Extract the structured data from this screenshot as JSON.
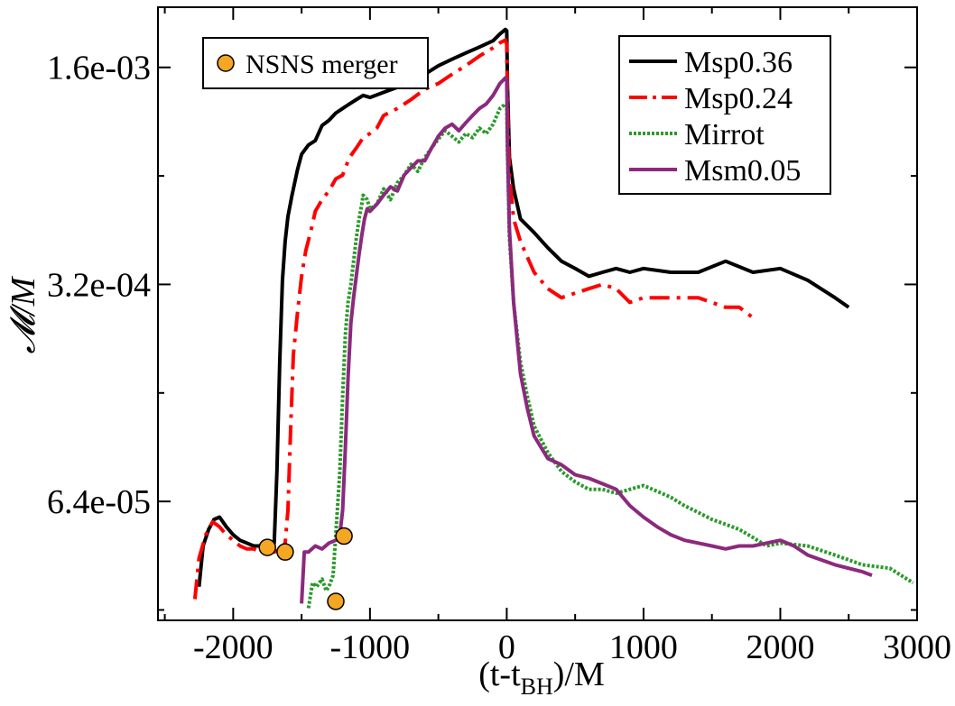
{
  "chart_data": {
    "type": "line",
    "title": "",
    "xlabel": "(t-t",
    "xlabel_sub": "BH",
    "xlabel_tail": ")/M",
    "ylabel": "𝓜/M",
    "xlim": [
      -2550,
      3000
    ],
    "ylog": true,
    "ylim": [
      2.65e-05,
      0.0025
    ],
    "x_ticks": [
      -2000,
      -1000,
      0,
      1000,
      2000,
      3000
    ],
    "x_tick_labels": [
      "-2000",
      "-1000",
      "0",
      "1000",
      "2000",
      "3000"
    ],
    "y_ticks": [
      0.0016,
      0.00032,
      6.4e-05
    ],
    "y_tick_labels": [
      "1.6e-03",
      "3.2e-04",
      "6.4e-05"
    ],
    "grid": false,
    "legend_position": "top-right",
    "series": [
      {
        "name": "Msp0.36",
        "color": "#000000",
        "dash": "solid",
        "x": [
          -2250,
          -2220,
          -2180,
          -2140,
          -2100,
          -2050,
          -2000,
          -1950,
          -1900,
          -1850,
          -1800,
          -1750,
          -1700,
          -1680,
          -1660,
          -1640,
          -1620,
          -1600,
          -1570,
          -1530,
          -1500,
          -1450,
          -1400,
          -1350,
          -1300,
          -1250,
          -1200,
          -1150,
          -1100,
          -1050,
          -1000,
          -900,
          -800,
          -700,
          -600,
          -500,
          -400,
          -300,
          -200,
          -100,
          -50,
          -10,
          0,
          5,
          20,
          50,
          100,
          200,
          300,
          400,
          500,
          600,
          700,
          800,
          900,
          1000,
          1200,
          1400,
          1600,
          1800,
          2000,
          2200,
          2400,
          2500
        ],
        "y": [
          3.4e-05,
          4.6e-05,
          5.2e-05,
          5.6e-05,
          5.7e-05,
          5.3e-05,
          5e-05,
          4.8e-05,
          4.7e-05,
          4.6e-05,
          4.6e-05,
          4.5e-05,
          4.7e-05,
          8e-05,
          0.00018,
          0.00033,
          0.00044,
          0.00053,
          0.00062,
          0.00075,
          0.00084,
          0.0009,
          0.00093,
          0.00104,
          0.00108,
          0.00114,
          0.00118,
          0.00122,
          0.00126,
          0.0013,
          0.00128,
          0.00133,
          0.00138,
          0.00145,
          0.00152,
          0.00162,
          0.0017,
          0.00178,
          0.00186,
          0.00195,
          0.00205,
          0.00212,
          0.0021,
          0.0014,
          0.00082,
          0.00065,
          0.00052,
          0.00047,
          0.00042,
          0.00038,
          0.00036,
          0.00034,
          0.00035,
          0.00036,
          0.00035,
          0.00036,
          0.00035,
          0.00035,
          0.00038,
          0.00035,
          0.00036,
          0.00033,
          0.00029,
          0.00027
        ]
      },
      {
        "name": "Msp0.24",
        "color": "#ff0000",
        "dash": "dashdot",
        "x": [
          -2280,
          -2250,
          -2200,
          -2150,
          -2100,
          -2050,
          -2000,
          -1950,
          -1900,
          -1850,
          -1800,
          -1750,
          -1700,
          -1650,
          -1620,
          -1600,
          -1580,
          -1560,
          -1530,
          -1500,
          -1470,
          -1430,
          -1400,
          -1350,
          -1300,
          -1250,
          -1200,
          -1150,
          -1100,
          -1050,
          -1000,
          -950,
          -900,
          -800,
          -700,
          -600,
          -500,
          -400,
          -300,
          -200,
          -100,
          -50,
          -10,
          0,
          5,
          20,
          50,
          100,
          200,
          300,
          400,
          500,
          600,
          700,
          800,
          900,
          1000,
          1200,
          1400,
          1600,
          1700,
          1800
        ],
        "y": [
          3.1e-05,
          4.2e-05,
          5e-05,
          5.5e-05,
          5.3e-05,
          5e-05,
          4.8e-05,
          4.6e-05,
          4.5e-05,
          4.5e-05,
          4.4e-05,
          4.4e-05,
          4.4e-05,
          4.5e-05,
          4.7e-05,
          6e-05,
          0.00011,
          0.00019,
          0.00026,
          0.00034,
          0.00041,
          0.00048,
          0.00055,
          0.0006,
          0.00064,
          0.0007,
          0.00072,
          0.00082,
          0.00088,
          0.00095,
          0.00098,
          0.00102,
          0.00112,
          0.00118,
          0.00126,
          0.00136,
          0.00142,
          0.00152,
          0.00162,
          0.00174,
          0.00185,
          0.00192,
          0.00196,
          0.0019,
          0.0012,
          0.00072,
          0.00052,
          0.00044,
          0.00035,
          0.00031,
          0.00029,
          0.0003,
          0.00031,
          0.00032,
          0.00031,
          0.00028,
          0.00029,
          0.00029,
          0.00029,
          0.00027,
          0.00027,
          0.00025
        ]
      },
      {
        "name": "Mirrot",
        "color": "#2a9a2a",
        "dash": "dotted",
        "x": [
          -1450,
          -1420,
          -1390,
          -1350,
          -1320,
          -1300,
          -1270,
          -1250,
          -1220,
          -1200,
          -1180,
          -1160,
          -1140,
          -1120,
          -1100,
          -1080,
          -1060,
          -1050,
          -1020,
          -1000,
          -950,
          -900,
          -850,
          -800,
          -750,
          -700,
          -650,
          -600,
          -550,
          -500,
          -450,
          -400,
          -350,
          -300,
          -250,
          -200,
          -150,
          -100,
          -50,
          -10,
          0,
          5,
          20,
          50,
          100,
          150,
          200,
          300,
          400,
          500,
          600,
          700,
          800,
          900,
          1000,
          1100,
          1200,
          1300,
          1400,
          1500,
          1600,
          1700,
          1800,
          1900,
          2000,
          2200,
          2400,
          2600,
          2800,
          2970
        ],
        "y": [
          2.9e-05,
          3.5e-05,
          3.4e-05,
          3.6e-05,
          3.3e-05,
          3.4e-05,
          3.7e-05,
          5e-05,
          8e-05,
          0.00014,
          0.00022,
          0.00028,
          0.00032,
          0.00038,
          0.00045,
          0.00052,
          0.00058,
          0.00062,
          0.0006,
          0.00056,
          0.00058,
          0.00065,
          0.0006,
          0.00068,
          0.00072,
          0.00078,
          0.00074,
          0.00082,
          0.00088,
          0.00094,
          0.001,
          0.00096,
          0.00092,
          0.00098,
          0.00095,
          0.00102,
          0.00098,
          0.00105,
          0.00118,
          0.00122,
          0.0012,
          0.00085,
          0.00045,
          0.00028,
          0.00018,
          0.00014,
          0.000112,
          9.2e-05,
          8e-05,
          7.4e-05,
          7e-05,
          7e-05,
          6.8e-05,
          7e-05,
          7.2e-05,
          6.9e-05,
          6.6e-05,
          6.2e-05,
          5.9e-05,
          5.6e-05,
          5.4e-05,
          5.2e-05,
          4.9e-05,
          4.6e-05,
          4.7e-05,
          4.6e-05,
          4.3e-05,
          4e-05,
          3.9e-05,
          3.5e-05
        ]
      },
      {
        "name": "Msm0.05",
        "color": "#8b2a7d",
        "dash": "solid",
        "x": [
          -1500,
          -1480,
          -1450,
          -1400,
          -1350,
          -1300,
          -1250,
          -1220,
          -1200,
          -1180,
          -1160,
          -1140,
          -1120,
          -1100,
          -1080,
          -1060,
          -1040,
          -1020,
          -1000,
          -950,
          -900,
          -850,
          -800,
          -750,
          -700,
          -650,
          -600,
          -550,
          -500,
          -450,
          -400,
          -350,
          -300,
          -250,
          -200,
          -150,
          -100,
          -50,
          -10,
          0,
          5,
          20,
          50,
          100,
          150,
          200,
          300,
          400,
          500,
          600,
          700,
          800,
          900,
          1000,
          1100,
          1200,
          1300,
          1400,
          1500,
          1600,
          1700,
          1800,
          1900,
          2000,
          2100,
          2200,
          2400,
          2600,
          2670
        ],
        "y": [
          3e-05,
          4.4e-05,
          4.4e-05,
          4.6e-05,
          4.5e-05,
          4.7e-05,
          4.8e-05,
          5e-05,
          6e-05,
          9.5e-05,
          0.00016,
          0.00024,
          0.00029,
          0.00034,
          0.0004,
          0.00046,
          0.00052,
          0.00056,
          0.00055,
          0.00058,
          0.00062,
          0.00066,
          0.00064,
          0.00072,
          0.00076,
          0.0008,
          0.0008,
          0.00088,
          0.00096,
          0.00102,
          0.00105,
          0.001,
          0.00106,
          0.00112,
          0.00118,
          0.00122,
          0.0013,
          0.00142,
          0.00148,
          0.00145,
          0.0009,
          0.00048,
          0.00028,
          0.000165,
          0.000128,
          0.000104,
          8.8e-05,
          8.4e-05,
          7.8e-05,
          7.6e-05,
          7.3e-05,
          7e-05,
          6.2e-05,
          5.7e-05,
          5.3e-05,
          5e-05,
          4.8e-05,
          4.7e-05,
          4.6e-05,
          4.5e-05,
          4.6e-05,
          4.6e-05,
          4.7e-05,
          4.8e-05,
          4.6e-05,
          4.3e-05,
          4e-05,
          3.8e-05,
          3.7e-05
        ]
      }
    ],
    "markers": {
      "label": "NSNS merger",
      "color": "#f5a623",
      "points": [
        {
          "x": -1750,
          "y": 4.55e-05
        },
        {
          "x": -1620,
          "y": 4.4e-05
        },
        {
          "x": -1250,
          "y": 3.05e-05
        },
        {
          "x": -1190,
          "y": 4.95e-05
        }
      ]
    }
  }
}
